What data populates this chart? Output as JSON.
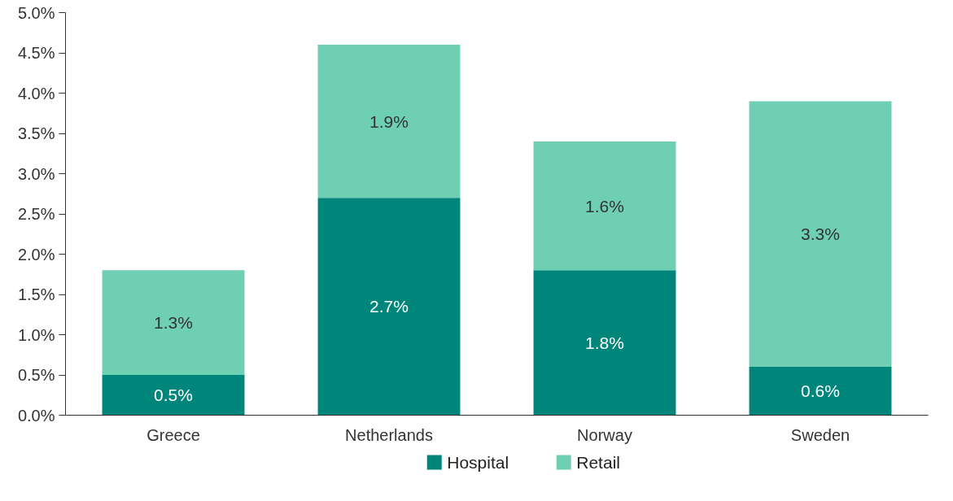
{
  "chart_data": {
    "type": "bar",
    "stacked": true,
    "categories": [
      "Greece",
      "Netherlands",
      "Norway",
      "Sweden"
    ],
    "series": [
      {
        "name": "Hospital",
        "color": "#00857a",
        "values": [
          0.5,
          2.7,
          1.8,
          0.6
        ],
        "value_labels": [
          "0.5%",
          "2.7%",
          "1.8%",
          "0.6%"
        ]
      },
      {
        "name": "Retail",
        "color": "#6fcfb2",
        "values": [
          1.3,
          1.9,
          1.6,
          3.3
        ],
        "value_labels": [
          "1.3%",
          "1.9%",
          "1.6%",
          "3.3%"
        ]
      }
    ],
    "ylim": [
      0,
      5
    ],
    "yticks": [
      {
        "value": 0,
        "label": "0.0%"
      },
      {
        "value": 0.5,
        "label": "0.5%"
      },
      {
        "value": 1,
        "label": "1.0%"
      },
      {
        "value": 1.5,
        "label": "1.5%"
      },
      {
        "value": 2,
        "label": "2.0%"
      },
      {
        "value": 2.5,
        "label": "2.5%"
      },
      {
        "value": 3,
        "label": "3.0%"
      },
      {
        "value": 3.5,
        "label": "3.5%"
      },
      {
        "value": 4,
        "label": "4.0%"
      },
      {
        "value": 4.5,
        "label": "4.5%"
      },
      {
        "value": 5,
        "label": "5.0%"
      }
    ],
    "grid": false,
    "legend": "bottom"
  }
}
